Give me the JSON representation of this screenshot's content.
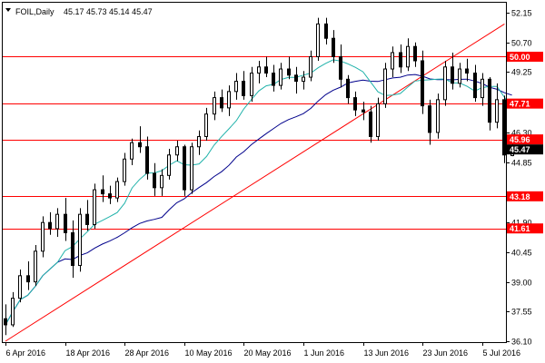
{
  "header": {
    "symbol": "FOIL,Daily",
    "ohlc": "45.17 45.73 45.14 45.47",
    "dropdown_icon": "triangle-down-icon"
  },
  "current_price": {
    "value": 45.47,
    "label": "45.47"
  },
  "colors": {
    "candle_up": "#ffffff",
    "candle_down": "#000000",
    "fast_ma": "#20b2aa",
    "slow_ma": "#00008b",
    "level_line": "#ff0000",
    "trendline": "#ff0000",
    "current_label_bg": "#000000",
    "level_label_bg": "#ff0000"
  },
  "chart_data": {
    "type": "candlestick",
    "ylim": [
      36.1,
      52.15
    ],
    "y_ticks": [
      {
        "value": 52.15,
        "label": "52.15"
      },
      {
        "value": 50.7,
        "label": "50.70"
      },
      {
        "value": 49.25,
        "label": "49.25"
      },
      {
        "value": 46.3,
        "label": "46.30"
      },
      {
        "value": 44.85,
        "label": "44.85"
      },
      {
        "value": 41.9,
        "label": "41.90"
      },
      {
        "value": 40.45,
        "label": "40.45"
      },
      {
        "value": 39.0,
        "label": "39.00"
      },
      {
        "value": 37.55,
        "label": "37.55"
      },
      {
        "value": 36.1,
        "label": "36.10"
      }
    ],
    "x_labels": [
      {
        "index": 0,
        "label": "6 Apr 2016"
      },
      {
        "index": 8,
        "label": "18 Apr 2016"
      },
      {
        "index": 16,
        "label": "28 Apr 2016"
      },
      {
        "index": 24,
        "label": "10 May 2016"
      },
      {
        "index": 32,
        "label": "20 May 2016"
      },
      {
        "index": 40,
        "label": "1 Jun 2016"
      },
      {
        "index": 48,
        "label": "13 Jun 2016"
      },
      {
        "index": 56,
        "label": "23 Jun 2016"
      },
      {
        "index": 64,
        "label": "5 Jul 2016"
      }
    ],
    "levels": [
      {
        "value": 50.0,
        "label": "50.00"
      },
      {
        "value": 47.71,
        "label": "47.71"
      },
      {
        "value": 45.96,
        "label": "45.96"
      },
      {
        "value": 43.18,
        "label": "43.18"
      },
      {
        "value": 41.61,
        "label": "41.61"
      }
    ],
    "trendline": {
      "from": {
        "index": 0,
        "value": 36.1
      },
      "to": {
        "index": 67,
        "value": 51.6
      }
    },
    "candles": [
      [
        37.2,
        37.9,
        36.4,
        36.9
      ],
      [
        36.9,
        38.5,
        36.8,
        38.2
      ],
      [
        38.2,
        39.6,
        38.0,
        39.3
      ],
      [
        39.3,
        40.0,
        38.6,
        39.0
      ],
      [
        39.0,
        40.8,
        38.8,
        40.5
      ],
      [
        40.5,
        42.2,
        40.2,
        41.9
      ],
      [
        41.9,
        42.4,
        41.3,
        41.6
      ],
      [
        41.6,
        42.6,
        41.2,
        42.3
      ],
      [
        42.3,
        43.1,
        41.0,
        41.4
      ],
      [
        41.4,
        42.0,
        39.2,
        39.8
      ],
      [
        39.8,
        42.6,
        39.5,
        42.3
      ],
      [
        42.3,
        43.0,
        41.5,
        41.8
      ],
      [
        41.8,
        43.8,
        41.6,
        43.5
      ],
      [
        43.5,
        44.2,
        42.9,
        43.3
      ],
      [
        43.3,
        43.7,
        42.8,
        43.1
      ],
      [
        43.1,
        44.1,
        42.9,
        43.9
      ],
      [
        43.9,
        45.3,
        43.7,
        45.0
      ],
      [
        45.0,
        46.0,
        44.7,
        45.8
      ],
      [
        45.8,
        46.6,
        45.3,
        45.6
      ],
      [
        45.6,
        46.1,
        44.0,
        44.3
      ],
      [
        44.3,
        44.8,
        43.2,
        43.6
      ],
      [
        43.6,
        44.5,
        43.2,
        44.2
      ],
      [
        44.2,
        45.5,
        44.0,
        45.2
      ],
      [
        45.2,
        45.9,
        44.9,
        45.6
      ],
      [
        45.6,
        45.7,
        43.2,
        43.5
      ],
      [
        43.5,
        45.8,
        43.3,
        45.6
      ],
      [
        45.6,
        46.4,
        45.2,
        46.1
      ],
      [
        46.1,
        47.5,
        45.9,
        47.2
      ],
      [
        47.2,
        48.3,
        46.9,
        48.0
      ],
      [
        48.0,
        48.4,
        47.3,
        47.5
      ],
      [
        47.5,
        48.6,
        47.1,
        48.3
      ],
      [
        48.3,
        49.2,
        47.9,
        48.8
      ],
      [
        48.8,
        49.3,
        47.9,
        48.1
      ],
      [
        48.1,
        49.5,
        47.8,
        49.2
      ],
      [
        49.2,
        49.8,
        48.7,
        49.5
      ],
      [
        49.5,
        50.0,
        49.0,
        49.2
      ],
      [
        49.2,
        49.6,
        48.3,
        48.6
      ],
      [
        48.6,
        49.7,
        48.4,
        49.4
      ],
      [
        49.4,
        50.0,
        48.9,
        49.1
      ],
      [
        49.1,
        49.5,
        48.2,
        48.8
      ],
      [
        48.8,
        49.3,
        48.4,
        49.0
      ],
      [
        49.0,
        50.3,
        48.8,
        50.0
      ],
      [
        50.0,
        51.9,
        49.8,
        51.6
      ],
      [
        51.6,
        51.9,
        50.6,
        50.9
      ],
      [
        50.9,
        51.3,
        49.7,
        50.0
      ],
      [
        50.0,
        50.6,
        48.5,
        48.9
      ],
      [
        48.9,
        49.1,
        47.7,
        48.0
      ],
      [
        48.0,
        48.3,
        47.1,
        47.4
      ],
      [
        47.4,
        47.8,
        46.9,
        47.3
      ],
      [
        47.3,
        47.6,
        45.8,
        46.1
      ],
      [
        46.1,
        48.0,
        45.9,
        47.7
      ],
      [
        47.7,
        49.7,
        47.5,
        49.4
      ],
      [
        49.4,
        50.5,
        49.0,
        50.2
      ],
      [
        50.2,
        50.6,
        49.2,
        49.5
      ],
      [
        49.5,
        50.9,
        49.3,
        50.5
      ],
      [
        50.5,
        50.7,
        49.5,
        49.8
      ],
      [
        49.8,
        50.3,
        47.2,
        47.6
      ],
      [
        47.6,
        47.9,
        45.7,
        46.3
      ],
      [
        46.3,
        48.2,
        46.0,
        47.9
      ],
      [
        47.9,
        49.8,
        47.6,
        49.5
      ],
      [
        49.5,
        50.2,
        48.4,
        48.7
      ],
      [
        48.7,
        49.7,
        48.5,
        49.4
      ],
      [
        49.4,
        49.9,
        48.8,
        49.2
      ],
      [
        49.2,
        49.6,
        47.8,
        48.0
      ],
      [
        48.0,
        49.2,
        47.6,
        48.9
      ],
      [
        48.9,
        49.0,
        46.4,
        46.8
      ],
      [
        46.8,
        48.7,
        46.5,
        47.9
      ],
      [
        47.9,
        48.1,
        44.8,
        45.2
      ],
      [
        45.17,
        45.73,
        45.14,
        45.47
      ]
    ]
  }
}
